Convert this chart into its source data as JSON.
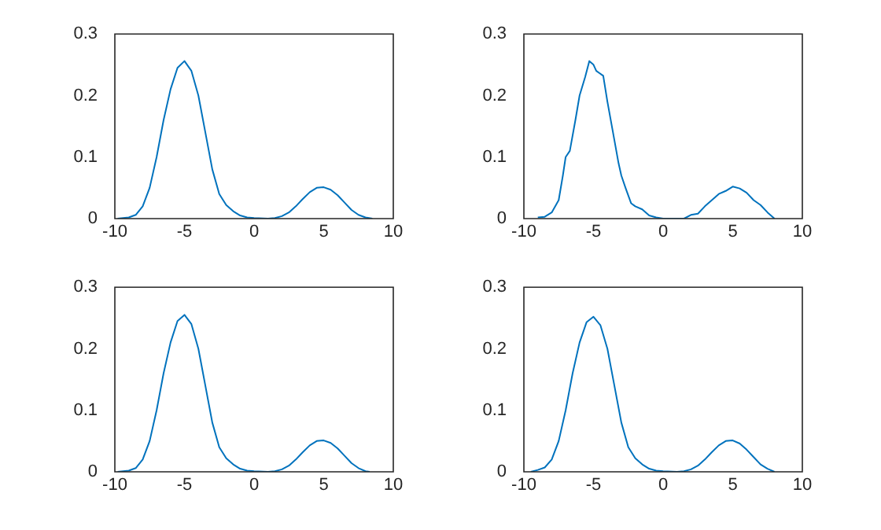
{
  "chart_data": [
    {
      "type": "line",
      "xlim": [
        -10,
        10
      ],
      "ylim": [
        0,
        0.3
      ],
      "xticks": [
        -10,
        -5,
        0,
        5,
        10
      ],
      "yticks": [
        0,
        0.1,
        0.2,
        0.3
      ],
      "grid": false,
      "legend": false,
      "marker": "none",
      "series": [
        {
          "color": "#0072bd",
          "x": [
            -9.8,
            -9,
            -8.5,
            -8,
            -7.5,
            -7,
            -6.5,
            -6,
            -5.5,
            -5,
            -4.5,
            -4,
            -3.5,
            -3,
            -2.5,
            -2,
            -1.5,
            -1,
            -0.5,
            0,
            1,
            1.5,
            2,
            2.5,
            3,
            3.5,
            4,
            4.5,
            5,
            5.5,
            6,
            6.5,
            7,
            7.5,
            8,
            8.5
          ],
          "values": [
            0,
            0.002,
            0.006,
            0.02,
            0.05,
            0.1,
            0.16,
            0.21,
            0.245,
            0.256,
            0.24,
            0.2,
            0.14,
            0.08,
            0.04,
            0.022,
            0.012,
            0.005,
            0.002,
            0.001,
            0,
            0.001,
            0.004,
            0.01,
            0.02,
            0.032,
            0.043,
            0.05,
            0.051,
            0.047,
            0.038,
            0.026,
            0.014,
            0.006,
            0.002,
            0
          ]
        }
      ]
    },
    {
      "type": "line",
      "xlim": [
        -10,
        10
      ],
      "ylim": [
        0,
        0.3
      ],
      "xticks": [
        -10,
        -5,
        0,
        5,
        10
      ],
      "yticks": [
        0,
        0.1,
        0.2,
        0.3
      ],
      "grid": false,
      "legend": false,
      "marker": "none",
      "series": [
        {
          "color": "#0072bd",
          "x": [
            -9,
            -8.5,
            -8,
            -7.5,
            -7.2,
            -7,
            -6.7,
            -6.3,
            -6,
            -5.6,
            -5.3,
            -5,
            -4.8,
            -4.3,
            -4,
            -3.6,
            -3.2,
            -3,
            -2.7,
            -2.3,
            -2,
            -1.5,
            -1,
            -0.5,
            0,
            1.5,
            2,
            2.5,
            3,
            3.5,
            4,
            4.5,
            5,
            5.5,
            6,
            6.5,
            7,
            7.5,
            8
          ],
          "values": [
            0.002,
            0.003,
            0.01,
            0.03,
            0.07,
            0.1,
            0.11,
            0.16,
            0.2,
            0.23,
            0.256,
            0.25,
            0.24,
            0.232,
            0.19,
            0.14,
            0.09,
            0.07,
            0.05,
            0.025,
            0.02,
            0.015,
            0.005,
            0.002,
            0,
            0,
            0.006,
            0.008,
            0.02,
            0.03,
            0.04,
            0.045,
            0.052,
            0.049,
            0.042,
            0.03,
            0.022,
            0.01,
            0
          ]
        }
      ]
    },
    {
      "type": "line",
      "xlim": [
        -10,
        10
      ],
      "ylim": [
        0,
        0.3
      ],
      "xticks": [
        -10,
        -5,
        0,
        5,
        10
      ],
      "yticks": [
        0,
        0.1,
        0.2,
        0.3
      ],
      "grid": false,
      "legend": false,
      "marker": "none",
      "series": [
        {
          "color": "#0072bd",
          "x": [
            -9.8,
            -9,
            -8.5,
            -8,
            -7.5,
            -7,
            -6.5,
            -6,
            -5.5,
            -5,
            -4.5,
            -4,
            -3.5,
            -3,
            -2.5,
            -2,
            -1.5,
            -1,
            -0.5,
            0,
            1,
            1.5,
            2,
            2.5,
            3,
            3.5,
            4,
            4.5,
            5,
            5.5,
            6,
            6.5,
            7,
            7.5,
            8,
            8.3
          ],
          "values": [
            0,
            0.002,
            0.006,
            0.02,
            0.05,
            0.1,
            0.16,
            0.21,
            0.245,
            0.255,
            0.24,
            0.2,
            0.14,
            0.08,
            0.04,
            0.022,
            0.012,
            0.005,
            0.002,
            0.001,
            0,
            0.001,
            0.004,
            0.01,
            0.02,
            0.032,
            0.043,
            0.05,
            0.051,
            0.047,
            0.038,
            0.026,
            0.014,
            0.006,
            0.001,
            0
          ]
        }
      ]
    },
    {
      "type": "line",
      "xlim": [
        -10,
        10
      ],
      "ylim": [
        0,
        0.3
      ],
      "xticks": [
        -10,
        -5,
        0,
        5,
        10
      ],
      "yticks": [
        0,
        0.1,
        0.2,
        0.3
      ],
      "grid": false,
      "legend": false,
      "marker": "none",
      "series": [
        {
          "color": "#0072bd",
          "x": [
            -9.5,
            -9,
            -8.5,
            -8,
            -7.5,
            -7,
            -6.5,
            -6,
            -5.5,
            -5,
            -4.5,
            -4,
            -3.5,
            -3,
            -2.5,
            -2,
            -1.5,
            -1,
            -0.5,
            0,
            1,
            1.5,
            2,
            2.5,
            3,
            3.5,
            4,
            4.5,
            5,
            5.5,
            6,
            6.5,
            7,
            7.5,
            8
          ],
          "values": [
            0,
            0.003,
            0.007,
            0.02,
            0.05,
            0.1,
            0.16,
            0.21,
            0.243,
            0.252,
            0.238,
            0.2,
            0.14,
            0.08,
            0.04,
            0.022,
            0.012,
            0.005,
            0.002,
            0.001,
            0,
            0.001,
            0.004,
            0.01,
            0.02,
            0.032,
            0.043,
            0.05,
            0.051,
            0.046,
            0.036,
            0.024,
            0.012,
            0.005,
            0
          ]
        }
      ]
    }
  ]
}
